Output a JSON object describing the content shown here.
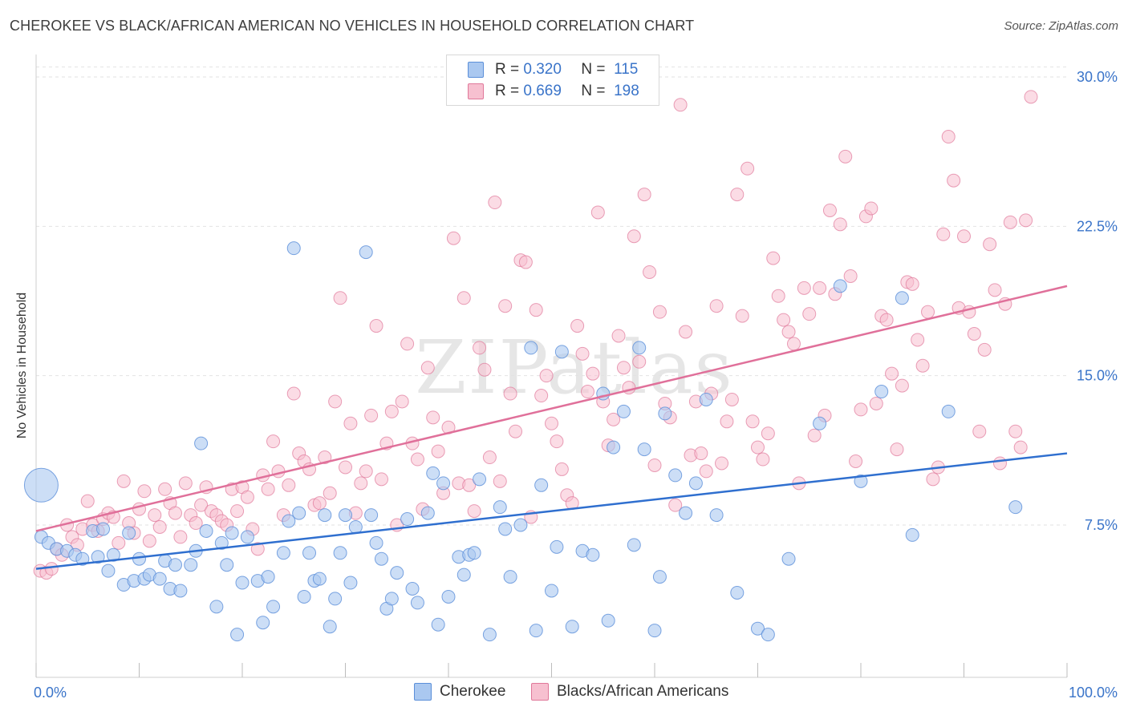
{
  "title": "CHEROKEE VS BLACK/AFRICAN AMERICAN NO VEHICLES IN HOUSEHOLD CORRELATION CHART",
  "source": "Source: ZipAtlas.com",
  "watermark": "ZIPatlas",
  "legend": {
    "rows": [
      {
        "r_label": "R =",
        "r_value": "0.320",
        "n_label": "N =",
        "n_value": "115",
        "color": "#aac8f0",
        "border": "#5b8fd9"
      },
      {
        "r_label": "R =",
        "r_value": "0.669",
        "n_label": "N =",
        "n_value": "198",
        "color": "#f7c0d0",
        "border": "#e0789a"
      }
    ]
  },
  "bottom_legend": [
    "Cherokee",
    "Blacks/African Americans"
  ],
  "chart_data": {
    "type": "scatter",
    "title": "CHEROKEE VS BLACK/AFRICAN AMERICAN NO VEHICLES IN HOUSEHOLD CORRELATION CHART",
    "xlabel": "",
    "ylabel": "No Vehicles in Household",
    "xlim": [
      0,
      100
    ],
    "ylim": [
      0,
      30.5
    ],
    "x_tick_labels": [
      "0.0%",
      "100.0%"
    ],
    "y_ticks": [
      7.5,
      15.0,
      22.5,
      30.0
    ],
    "y_tick_labels": [
      "7.5%",
      "15.0%",
      "22.5%",
      "30.0%"
    ],
    "grid": true,
    "series": [
      {
        "name": "Cherokee",
        "color": "#5b8fd9",
        "fill": "#aac8f0",
        "trend": {
          "x0": 0,
          "y0": 5.3,
          "x1": 100,
          "y1": 11.1
        },
        "points": [
          [
            0.5,
            6.9
          ],
          [
            1.2,
            6.6
          ],
          [
            2.0,
            6.3
          ],
          [
            3.0,
            6.2
          ],
          [
            3.8,
            6.0
          ],
          [
            4.5,
            5.8
          ],
          [
            5.5,
            7.2
          ],
          [
            6.0,
            5.9
          ],
          [
            6.5,
            7.3
          ],
          [
            7.0,
            5.2
          ],
          [
            7.5,
            6.0
          ],
          [
            8.5,
            4.5
          ],
          [
            9.0,
            7.1
          ],
          [
            9.5,
            4.7
          ],
          [
            10.0,
            5.8
          ],
          [
            10.5,
            4.8
          ],
          [
            11.0,
            5.0
          ],
          [
            12.0,
            4.8
          ],
          [
            12.5,
            5.7
          ],
          [
            13.0,
            4.3
          ],
          [
            13.5,
            5.5
          ],
          [
            14.0,
            4.2
          ],
          [
            15.0,
            5.5
          ],
          [
            15.5,
            6.2
          ],
          [
            16.0,
            11.6
          ],
          [
            16.5,
            7.2
          ],
          [
            17.5,
            3.4
          ],
          [
            18.0,
            6.6
          ],
          [
            18.5,
            5.5
          ],
          [
            19.0,
            7.1
          ],
          [
            19.5,
            2.0
          ],
          [
            20.0,
            4.6
          ],
          [
            20.5,
            6.9
          ],
          [
            21.5,
            4.7
          ],
          [
            22.0,
            2.6
          ],
          [
            22.5,
            4.9
          ],
          [
            23.0,
            3.4
          ],
          [
            24.0,
            6.1
          ],
          [
            24.5,
            7.7
          ],
          [
            25.0,
            21.4
          ],
          [
            25.5,
            8.1
          ],
          [
            26.0,
            3.9
          ],
          [
            26.5,
            6.1
          ],
          [
            27.0,
            4.7
          ],
          [
            27.5,
            4.8
          ],
          [
            28.0,
            8.0
          ],
          [
            28.5,
            2.4
          ],
          [
            29.0,
            3.8
          ],
          [
            29.5,
            6.1
          ],
          [
            30.0,
            8.0
          ],
          [
            30.5,
            4.6
          ],
          [
            31.0,
            7.4
          ],
          [
            32.0,
            21.2
          ],
          [
            32.5,
            8.0
          ],
          [
            33.0,
            6.6
          ],
          [
            33.5,
            5.8
          ],
          [
            34.0,
            3.3
          ],
          [
            34.5,
            3.8
          ],
          [
            35.0,
            5.1
          ],
          [
            36.0,
            7.8
          ],
          [
            36.5,
            4.3
          ],
          [
            37.0,
            3.6
          ],
          [
            38.0,
            8.1
          ],
          [
            38.5,
            10.1
          ],
          [
            39.0,
            2.5
          ],
          [
            39.5,
            9.6
          ],
          [
            40.0,
            3.9
          ],
          [
            41.0,
            5.9
          ],
          [
            41.5,
            5.0
          ],
          [
            42.0,
            6.0
          ],
          [
            42.5,
            6.1
          ],
          [
            43.0,
            9.8
          ],
          [
            44.0,
            2.0
          ],
          [
            45.0,
            8.4
          ],
          [
            45.5,
            7.3
          ],
          [
            46.0,
            4.9
          ],
          [
            47.0,
            7.5
          ],
          [
            48.0,
            16.4
          ],
          [
            48.5,
            2.2
          ],
          [
            49.0,
            9.5
          ],
          [
            50.0,
            4.2
          ],
          [
            50.5,
            6.4
          ],
          [
            51.0,
            16.2
          ],
          [
            52.0,
            2.4
          ],
          [
            53.0,
            6.2
          ],
          [
            54.0,
            6.0
          ],
          [
            55.0,
            14.1
          ],
          [
            55.5,
            2.7
          ],
          [
            56.0,
            11.4
          ],
          [
            57.0,
            13.2
          ],
          [
            58.0,
            6.5
          ],
          [
            58.5,
            16.4
          ],
          [
            59.0,
            11.3
          ],
          [
            60.0,
            2.2
          ],
          [
            60.5,
            4.9
          ],
          [
            61.0,
            13.1
          ],
          [
            62.0,
            10.0
          ],
          [
            63.0,
            8.1
          ],
          [
            64.0,
            9.6
          ],
          [
            65.0,
            13.8
          ],
          [
            66.0,
            8.0
          ],
          [
            68.0,
            4.1
          ],
          [
            70.0,
            2.3
          ],
          [
            71.0,
            2.0
          ],
          [
            73.0,
            5.8
          ],
          [
            76.0,
            12.6
          ],
          [
            78.0,
            19.5
          ],
          [
            80.0,
            9.7
          ],
          [
            82.0,
            14.2
          ],
          [
            84.0,
            18.9
          ],
          [
            85.0,
            7.0
          ],
          [
            88.5,
            13.2
          ],
          [
            95.0,
            8.4
          ]
        ],
        "big_point": [
          0.5,
          9.5
        ]
      },
      {
        "name": "Blacks/African Americans",
        "color": "#e0789a",
        "fill": "#f7c0d0",
        "trend": {
          "x0": 0,
          "y0": 7.2,
          "x1": 100,
          "y1": 19.5
        },
        "points": [
          [
            0.4,
            5.2
          ],
          [
            1.0,
            5.1
          ],
          [
            1.5,
            5.3
          ],
          [
            2.0,
            6.3
          ],
          [
            2.5,
            6.0
          ],
          [
            3.0,
            7.5
          ],
          [
            3.5,
            6.9
          ],
          [
            4.0,
            6.5
          ],
          [
            4.5,
            7.3
          ],
          [
            5.0,
            8.7
          ],
          [
            5.5,
            7.5
          ],
          [
            6.0,
            7.2
          ],
          [
            6.5,
            7.8
          ],
          [
            7.0,
            8.1
          ],
          [
            7.5,
            7.9
          ],
          [
            8.0,
            6.6
          ],
          [
            8.5,
            9.7
          ],
          [
            9.0,
            7.6
          ],
          [
            9.5,
            7.1
          ],
          [
            10.0,
            8.3
          ],
          [
            10.5,
            9.2
          ],
          [
            11.0,
            6.7
          ],
          [
            11.5,
            8.0
          ],
          [
            12.0,
            7.4
          ],
          [
            12.5,
            9.3
          ],
          [
            13.0,
            8.6
          ],
          [
            13.5,
            8.1
          ],
          [
            14.0,
            6.9
          ],
          [
            14.5,
            9.6
          ],
          [
            15.0,
            8.0
          ],
          [
            15.5,
            7.6
          ],
          [
            16.0,
            8.5
          ],
          [
            16.5,
            9.4
          ],
          [
            17.0,
            8.2
          ],
          [
            17.5,
            8.0
          ],
          [
            18.0,
            7.7
          ],
          [
            18.5,
            7.5
          ],
          [
            19.0,
            9.3
          ],
          [
            19.5,
            8.2
          ],
          [
            20.0,
            9.4
          ],
          [
            20.5,
            8.9
          ],
          [
            21.0,
            7.3
          ],
          [
            21.5,
            6.3
          ],
          [
            22.0,
            10.0
          ],
          [
            22.5,
            9.3
          ],
          [
            23.0,
            11.7
          ],
          [
            23.5,
            10.2
          ],
          [
            24.0,
            8.0
          ],
          [
            24.5,
            9.5
          ],
          [
            25.0,
            14.1
          ],
          [
            25.5,
            11.1
          ],
          [
            26.0,
            10.7
          ],
          [
            26.5,
            10.3
          ],
          [
            27.0,
            8.5
          ],
          [
            27.5,
            8.6
          ],
          [
            28.0,
            10.9
          ],
          [
            28.5,
            9.1
          ],
          [
            29.0,
            13.7
          ],
          [
            29.5,
            18.9
          ],
          [
            30.0,
            10.4
          ],
          [
            30.5,
            12.6
          ],
          [
            31.0,
            8.1
          ],
          [
            31.5,
            9.6
          ],
          [
            32.0,
            10.2
          ],
          [
            32.5,
            13.0
          ],
          [
            33.0,
            17.5
          ],
          [
            33.5,
            9.8
          ],
          [
            34.0,
            11.6
          ],
          [
            34.5,
            13.2
          ],
          [
            35.0,
            7.5
          ],
          [
            35.5,
            13.7
          ],
          [
            36.0,
            16.6
          ],
          [
            36.5,
            11.6
          ],
          [
            37.0,
            10.8
          ],
          [
            37.5,
            8.3
          ],
          [
            38.0,
            15.4
          ],
          [
            38.5,
            12.9
          ],
          [
            39.0,
            11.2
          ],
          [
            39.5,
            9.1
          ],
          [
            40.0,
            12.4
          ],
          [
            40.5,
            21.9
          ],
          [
            41.0,
            9.6
          ],
          [
            41.5,
            18.9
          ],
          [
            42.0,
            9.5
          ],
          [
            42.5,
            8.2
          ],
          [
            43.0,
            16.4
          ],
          [
            43.5,
            15.3
          ],
          [
            44.0,
            10.9
          ],
          [
            44.5,
            23.7
          ],
          [
            45.0,
            9.7
          ],
          [
            45.5,
            18.5
          ],
          [
            46.0,
            14.1
          ],
          [
            46.5,
            12.2
          ],
          [
            47.0,
            20.8
          ],
          [
            47.5,
            20.7
          ],
          [
            48.0,
            7.9
          ],
          [
            48.5,
            18.3
          ],
          [
            49.0,
            14.0
          ],
          [
            49.5,
            15.0
          ],
          [
            50.0,
            12.6
          ],
          [
            50.5,
            11.7
          ],
          [
            51.0,
            10.3
          ],
          [
            51.5,
            9.0
          ],
          [
            52.0,
            8.6
          ],
          [
            52.5,
            17.5
          ],
          [
            53.0,
            16.1
          ],
          [
            53.5,
            14.2
          ],
          [
            54.0,
            15.1
          ],
          [
            54.5,
            23.2
          ],
          [
            55.0,
            13.7
          ],
          [
            55.5,
            11.5
          ],
          [
            56.0,
            12.8
          ],
          [
            56.5,
            17.0
          ],
          [
            57.0,
            15.4
          ],
          [
            57.5,
            14.4
          ],
          [
            58.0,
            22.0
          ],
          [
            58.5,
            15.7
          ],
          [
            59.0,
            24.1
          ],
          [
            59.5,
            20.2
          ],
          [
            60.0,
            10.5
          ],
          [
            60.5,
            18.2
          ],
          [
            61.0,
            13.6
          ],
          [
            61.5,
            12.9
          ],
          [
            62.0,
            8.5
          ],
          [
            62.5,
            28.6
          ],
          [
            63.0,
            17.2
          ],
          [
            63.5,
            11.0
          ],
          [
            64.0,
            13.7
          ],
          [
            64.5,
            11.1
          ],
          [
            65.0,
            10.2
          ],
          [
            65.5,
            14.1
          ],
          [
            66.0,
            18.5
          ],
          [
            66.5,
            10.6
          ],
          [
            67.0,
            12.7
          ],
          [
            67.5,
            13.8
          ],
          [
            68.0,
            24.1
          ],
          [
            68.5,
            18.0
          ],
          [
            69.0,
            25.4
          ],
          [
            69.5,
            12.7
          ],
          [
            70.0,
            11.4
          ],
          [
            70.5,
            10.8
          ],
          [
            71.0,
            12.1
          ],
          [
            71.5,
            20.9
          ],
          [
            72.0,
            19.0
          ],
          [
            72.5,
            17.8
          ],
          [
            73.0,
            17.2
          ],
          [
            73.5,
            16.6
          ],
          [
            74.0,
            9.6
          ],
          [
            74.5,
            19.4
          ],
          [
            75.0,
            18.1
          ],
          [
            75.5,
            12.0
          ],
          [
            76.0,
            19.4
          ],
          [
            76.5,
            13.0
          ],
          [
            77.0,
            23.3
          ],
          [
            77.5,
            19.1
          ],
          [
            78.0,
            22.6
          ],
          [
            78.5,
            26.0
          ],
          [
            79.0,
            20.0
          ],
          [
            79.5,
            10.7
          ],
          [
            80.0,
            13.3
          ],
          [
            80.5,
            23.0
          ],
          [
            81.0,
            23.4
          ],
          [
            81.5,
            13.6
          ],
          [
            82.0,
            18.0
          ],
          [
            82.5,
            17.8
          ],
          [
            83.0,
            15.1
          ],
          [
            83.5,
            11.3
          ],
          [
            84.0,
            14.5
          ],
          [
            84.5,
            19.7
          ],
          [
            85.0,
            19.6
          ],
          [
            85.5,
            16.8
          ],
          [
            86.0,
            15.5
          ],
          [
            86.5,
            18.2
          ],
          [
            87.0,
            9.8
          ],
          [
            87.5,
            10.4
          ],
          [
            88.0,
            22.1
          ],
          [
            88.5,
            27.0
          ],
          [
            89.0,
            24.8
          ],
          [
            89.5,
            18.4
          ],
          [
            90.0,
            22.0
          ],
          [
            90.5,
            18.2
          ],
          [
            91.0,
            17.1
          ],
          [
            91.5,
            12.2
          ],
          [
            92.0,
            16.3
          ],
          [
            92.5,
            21.6
          ],
          [
            93.0,
            19.3
          ],
          [
            93.5,
            10.6
          ],
          [
            94.0,
            18.6
          ],
          [
            94.5,
            22.7
          ],
          [
            95.0,
            12.2
          ],
          [
            95.5,
            11.4
          ],
          [
            96.0,
            22.8
          ],
          [
            96.5,
            29.0
          ]
        ]
      }
    ]
  }
}
